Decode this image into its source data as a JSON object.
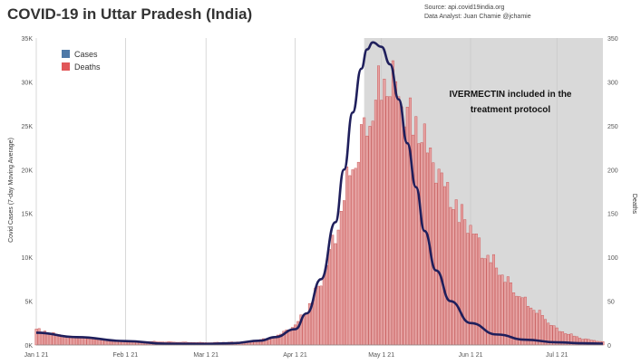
{
  "header": {
    "title": "COVID-19 in Uttar Pradesh (India)",
    "source_line": "Source: api.covid19india.org",
    "analyst_line": "Data Analyst: Juan Chamie @jchamie"
  },
  "colors": {
    "cases_line": "#1f1f5c",
    "deaths_bar_fill": "#e6a3a3",
    "deaths_bar_stroke": "#c64848",
    "legend_cases": "#4e79a7",
    "legend_deaths": "#e15759",
    "shade": "#d9d9d9"
  },
  "chart_data": {
    "type": "bar",
    "xlabel": "",
    "ylabel_left": "Covid Cases (7-day Moving Average)",
    "ylabel_right": "Deaths",
    "x_ticks": [
      "Jan 1 21",
      "Feb 1 21",
      "Mar 1 21",
      "Apr 1 21",
      "May 1 21",
      "Jun 1 21",
      "Jul 1 21"
    ],
    "y_left_ticks": [
      "0K",
      "5K",
      "10K",
      "15K",
      "20K",
      "25K",
      "30K",
      "35K"
    ],
    "y_right_ticks": [
      "0",
      "50",
      "100",
      "150",
      "200",
      "250",
      "300",
      "350"
    ],
    "ylim_left": [
      0,
      35000
    ],
    "ylim_right": [
      0,
      350
    ],
    "x_range": [
      "2021-01-01",
      "2021-07-17"
    ],
    "legend": [
      "Cases",
      "Deaths"
    ],
    "legend_position": "top-left",
    "grid": "vertical lines at month starts",
    "shaded_period": {
      "from": "2021-04-25",
      "to": "end"
    },
    "annotation": "IVERMECTIN included in the treatment protocol",
    "series": [
      {
        "name": "Cases",
        "type": "line",
        "axis": "left",
        "x": [
          "2021-01-01",
          "2021-01-15",
          "2021-02-01",
          "2021-02-15",
          "2021-03-01",
          "2021-03-10",
          "2021-03-20",
          "2021-03-25",
          "2021-04-01",
          "2021-04-05",
          "2021-04-10",
          "2021-04-15",
          "2021-04-18",
          "2021-04-21",
          "2021-04-24",
          "2021-04-26",
          "2021-04-28",
          "2021-05-01",
          "2021-05-04",
          "2021-05-07",
          "2021-05-10",
          "2021-05-13",
          "2021-05-16",
          "2021-05-20",
          "2021-05-25",
          "2021-06-01",
          "2021-06-10",
          "2021-06-20",
          "2021-07-01",
          "2021-07-10",
          "2021-07-17"
        ],
        "y": [
          1400,
          900,
          450,
          150,
          130,
          200,
          500,
          900,
          1800,
          3600,
          7500,
          14000,
          20000,
          26500,
          31500,
          33700,
          34500,
          34000,
          32000,
          28000,
          23000,
          18000,
          13000,
          8500,
          5000,
          2500,
          1200,
          600,
          300,
          200,
          150
        ]
      },
      {
        "name": "Deaths",
        "type": "bar",
        "axis": "right",
        "x": [
          "2021-01-01",
          "2021-01-10",
          "2021-01-20",
          "2021-02-01",
          "2021-02-15",
          "2021-03-01",
          "2021-03-15",
          "2021-03-25",
          "2021-04-01",
          "2021-04-05",
          "2021-04-10",
          "2021-04-15",
          "2021-04-18",
          "2021-04-21",
          "2021-04-24",
          "2021-04-27",
          "2021-04-30",
          "2021-05-03",
          "2021-05-06",
          "2021-05-09",
          "2021-05-12",
          "2021-05-15",
          "2021-05-18",
          "2021-05-22",
          "2021-05-26",
          "2021-06-01",
          "2021-06-05",
          "2021-06-10",
          "2021-06-15",
          "2021-06-20",
          "2021-06-25",
          "2021-07-01",
          "2021-07-05",
          "2021-07-10",
          "2021-07-17"
        ],
        "y": [
          20,
          12,
          8,
          5,
          4,
          3,
          4,
          10,
          25,
          45,
          80,
          140,
          190,
          230,
          260,
          290,
          320,
          345,
          325,
          300,
          285,
          270,
          240,
          210,
          180,
          150,
          120,
          100,
          75,
          55,
          40,
          20,
          14,
          8,
          4
        ]
      }
    ]
  }
}
